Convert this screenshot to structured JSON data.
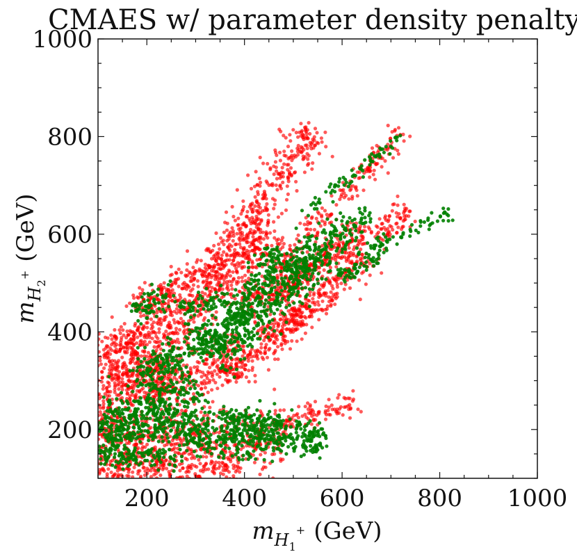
{
  "chart_data": {
    "type": "scatter",
    "title": "CMAES w/ parameter density penalty",
    "xlabel": {
      "symbol": "m",
      "sub": "H",
      "subsub": "1",
      "sup": "+",
      "unit": "(GeV)"
    },
    "ylabel": {
      "symbol": "m",
      "sub": "H",
      "subsub": "2",
      "sup": "+",
      "unit": "(GeV)"
    },
    "xlim": [
      100,
      1000
    ],
    "ylim": [
      100,
      1000
    ],
    "xticks": [
      200,
      400,
      600,
      800,
      1000
    ],
    "yticks": [
      200,
      400,
      600,
      800,
      1000
    ],
    "grid": false,
    "series": [
      {
        "name": "red",
        "color": "#ff0000",
        "regions": [
          {
            "from": [
              100,
              210
            ],
            "to": [
              320,
              470
            ],
            "width": 65
          },
          {
            "from": [
              150,
              350
            ],
            "to": [
              300,
              520
            ],
            "width": 55
          },
          {
            "from": [
              170,
              460
            ],
            "to": [
              240,
              480
            ],
            "width": 30
          },
          {
            "from": [
              320,
              500
            ],
            "to": [
              545,
              815
            ],
            "width": 60
          },
          {
            "from": [
              330,
              480
            ],
            "to": [
              460,
              600
            ],
            "width": 90
          },
          {
            "from": [
              420,
              470
            ],
            "to": [
              720,
              815
            ],
            "width": 30
          },
          {
            "from": [
              400,
              440
            ],
            "to": [
              740,
              650
            ],
            "width": 40
          },
          {
            "from": [
              440,
              380
            ],
            "to": [
              660,
              560
            ],
            "width": 50
          },
          {
            "from": [
              460,
              470
            ],
            "to": [
              640,
              620
            ],
            "width": 35
          },
          {
            "from": [
              440,
              395
            ],
            "to": [
              590,
              470
            ],
            "width": 25
          },
          {
            "from": [
              360,
              300
            ],
            "to": [
              520,
              430
            ],
            "width": 40
          },
          {
            "from": [
              100,
              120
            ],
            "to": [
              390,
              120
            ],
            "width": 45
          },
          {
            "from": [
              100,
              180
            ],
            "to": [
              480,
              180
            ],
            "width": 90
          },
          {
            "from": [
              460,
              210
            ],
            "to": [
              630,
              255
            ],
            "width": 35
          },
          {
            "from": [
              200,
              260
            ],
            "to": [
              400,
              360
            ],
            "width": 70
          },
          {
            "from": [
              100,
              300
            ],
            "to": [
              260,
              310
            ],
            "width": 60
          },
          {
            "from": [
              100,
              340
            ],
            "to": [
              200,
              400
            ],
            "width": 70
          }
        ]
      },
      {
        "name": "green",
        "color": "#008000",
        "regions": [
          {
            "from": [
              110,
              180
            ],
            "to": [
              300,
              300
            ],
            "width": 95
          },
          {
            "from": [
              170,
              440
            ],
            "to": [
              260,
              470
            ],
            "width": 40
          },
          {
            "from": [
              180,
              300
            ],
            "to": [
              400,
              430
            ],
            "width": 55
          },
          {
            "from": [
              330,
              350
            ],
            "to": [
              560,
              570
            ],
            "width": 80
          },
          {
            "from": [
              380,
              420
            ],
            "to": [
              470,
              570
            ],
            "width": 45
          },
          {
            "from": [
              480,
              500
            ],
            "to": [
              650,
              650
            ],
            "width": 45
          },
          {
            "from": [
              520,
              640
            ],
            "to": [
              720,
              800
            ],
            "width": 16
          },
          {
            "from": [
              600,
              510
            ],
            "to": [
              690,
              570
            ],
            "width": 22
          },
          {
            "from": [
              630,
              560
            ],
            "to": [
              820,
              640
            ],
            "width": 18
          },
          {
            "from": [
              110,
              220
            ],
            "to": [
              480,
              200
            ],
            "width": 55
          },
          {
            "from": [
              280,
              175
            ],
            "to": [
              570,
              175
            ],
            "width": 45
          },
          {
            "from": [
              350,
              230
            ],
            "to": [
              560,
              190
            ],
            "width": 30
          },
          {
            "from": [
              100,
              150
            ],
            "to": [
              280,
              140
            ],
            "width": 35
          },
          {
            "from": [
              270,
              450
            ],
            "to": [
              370,
              470
            ],
            "width": 25
          }
        ]
      }
    ]
  }
}
